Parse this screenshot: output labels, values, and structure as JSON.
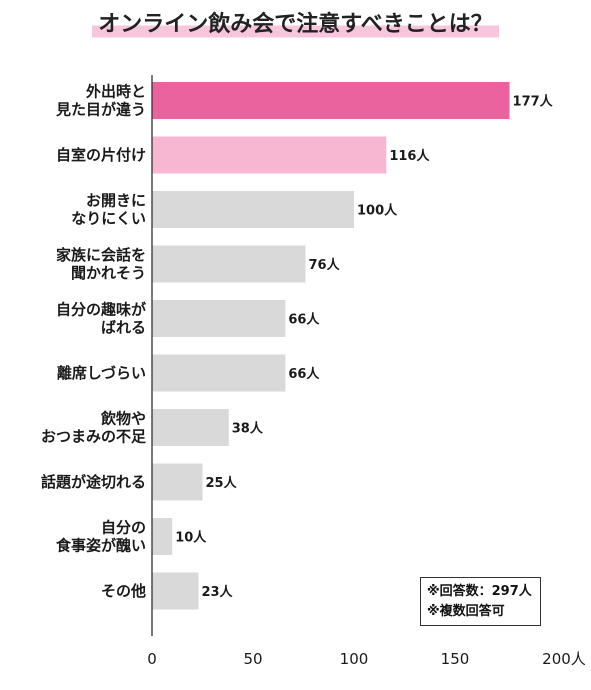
{
  "title": "オンライン飲み会で注意すべきことは？",
  "notes": [
    "※回答数：297人",
    "※複数回答可"
  ],
  "colors": {
    "highlight": "#ea639f",
    "second": "#f7b6d2",
    "default": "#d9d9d9",
    "axis": "#333333"
  },
  "chart_data": {
    "type": "bar",
    "orientation": "horizontal",
    "title": "オンライン飲み会で注意すべきことは？",
    "categories": [
      [
        "外出時と",
        "見た目が違う"
      ],
      [
        "自室の片付け"
      ],
      [
        "お開きに",
        "なりにくい"
      ],
      [
        "家族に会話を",
        "聞かれそう"
      ],
      [
        "自分の趣味が",
        "ばれる"
      ],
      [
        "離席しづらい"
      ],
      [
        "飲物や",
        "おつまみの不足"
      ],
      [
        "話題が途切れる"
      ],
      [
        "自分の",
        "食事姿が醜い"
      ],
      [
        "その他"
      ]
    ],
    "values": [
      177,
      116,
      100,
      76,
      66,
      66,
      38,
      25,
      10,
      23
    ],
    "value_unit": "人",
    "xlim": [
      0,
      200
    ],
    "xticks": [
      "0",
      "50",
      "100",
      "150",
      "200人"
    ],
    "grid": false
  }
}
